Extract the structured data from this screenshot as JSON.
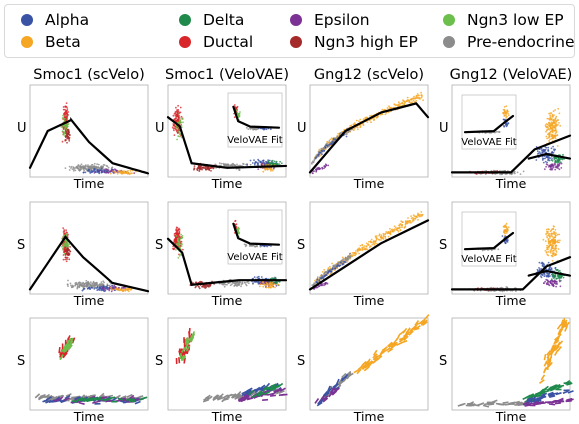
{
  "legend": [
    {
      "label": "Alpha",
      "color": "#3a52a4"
    },
    {
      "label": "Beta",
      "color": "#f5a623"
    },
    {
      "label": "Delta",
      "color": "#1f8a4c"
    },
    {
      "label": "Ductal",
      "color": "#d9262a"
    },
    {
      "label": "Epsilon",
      "color": "#7b3294"
    },
    {
      "label": "Ngn3 high EP",
      "color": "#a52a2a"
    },
    {
      "label": "Ngn3 low EP",
      "color": "#6cbf4a"
    },
    {
      "label": "Pre-endocrine",
      "color": "#8c8c8c"
    }
  ],
  "column_titles": [
    "Smoc1 (scVelo)",
    "Smoc1 (VeloVAE)",
    "Gng12 (scVelo)",
    "Gng12 (VeloVAE)"
  ],
  "row_ylabels": [
    "U",
    "S",
    "S"
  ],
  "xlabel": "Time",
  "inset_label": "VeloVAE Fit",
  "chart_data": {
    "type": "scatter",
    "description_free": true,
    "grid": false,
    "legend_position": "top",
    "columns": [
      {
        "title": "Smoc1 (scVelo)",
        "fit_U": [
          [
            0,
            0.1
          ],
          [
            0.15,
            0.5
          ],
          [
            0.35,
            0.62
          ],
          [
            0.5,
            0.38
          ],
          [
            0.7,
            0.15
          ],
          [
            1,
            0.04
          ]
        ],
        "fit_S": [
          [
            0,
            0.05
          ],
          [
            0.3,
            0.62
          ],
          [
            0.45,
            0.4
          ],
          [
            0.7,
            0.12
          ],
          [
            1,
            0.03
          ]
        ]
      },
      {
        "title": "Smoc1 (VeloVAE)",
        "fit_U": [
          [
            0,
            0.65
          ],
          [
            0.1,
            0.55
          ],
          [
            0.2,
            0.15
          ],
          [
            0.5,
            0.1
          ],
          [
            1,
            0.12
          ]
        ],
        "fit_S": [
          [
            0,
            0.6
          ],
          [
            0.12,
            0.45
          ],
          [
            0.2,
            0.1
          ],
          [
            0.6,
            0.15
          ],
          [
            1,
            0.15
          ]
        ]
      },
      {
        "title": "Gng12 (scVelo)",
        "fit_U": [
          [
            0,
            0.05
          ],
          [
            0.3,
            0.5
          ],
          [
            0.6,
            0.7
          ],
          [
            0.9,
            0.8
          ],
          [
            1,
            0.65
          ]
        ],
        "fit_S": [
          [
            0,
            0.05
          ],
          [
            0.3,
            0.3
          ],
          [
            0.6,
            0.55
          ],
          [
            1,
            0.8
          ]
        ]
      },
      {
        "title": "Gng12 (VeloVAE)",
        "fit_U": [
          [
            0,
            0.05
          ],
          [
            0.5,
            0.05
          ],
          [
            0.7,
            0.3
          ],
          [
            1,
            0.45
          ]
        ],
        "fit_S": [
          [
            0,
            0.05
          ],
          [
            0.6,
            0.05
          ],
          [
            0.8,
            0.3
          ],
          [
            1,
            0.4
          ]
        ]
      }
    ]
  }
}
